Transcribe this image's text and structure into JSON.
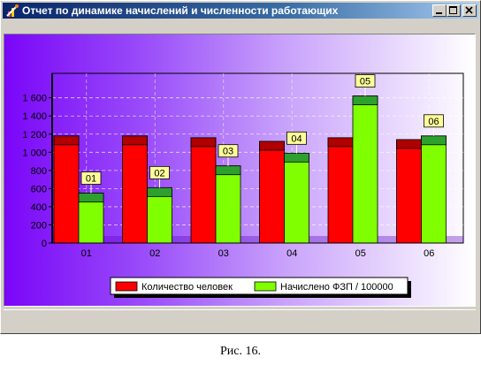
{
  "window": {
    "title": "Отчет по динамике начислений и численности работающих",
    "controls": [
      "minimize",
      "maximize",
      "close"
    ]
  },
  "figure_caption": "Рис. 16.",
  "colors": {
    "series1": "#ff0000",
    "series1_top": "#b00000",
    "series2": "#80ff00",
    "series2_top": "#2ea02e",
    "label_bg": "#ffff99"
  },
  "chart_data": {
    "type": "bar",
    "categories": [
      "01",
      "02",
      "03",
      "04",
      "05",
      "06"
    ],
    "series": [
      {
        "name": "Количество человек",
        "values": [
          1180,
          1180,
          1160,
          1120,
          1160,
          1140
        ]
      },
      {
        "name": "Начислено ФЗП / 100000",
        "values": [
          550,
          610,
          850,
          990,
          1620,
          1180
        ]
      }
    ],
    "series2_point_labels": [
      "01",
      "02",
      "03",
      "04",
      "05",
      "06"
    ],
    "yticks": [
      "0",
      "200",
      "400",
      "600",
      "800",
      "1 000",
      "1 200",
      "1 400",
      "1 600"
    ],
    "ylim": [
      0,
      1850
    ],
    "grid": true,
    "legend_position": "bottom"
  }
}
